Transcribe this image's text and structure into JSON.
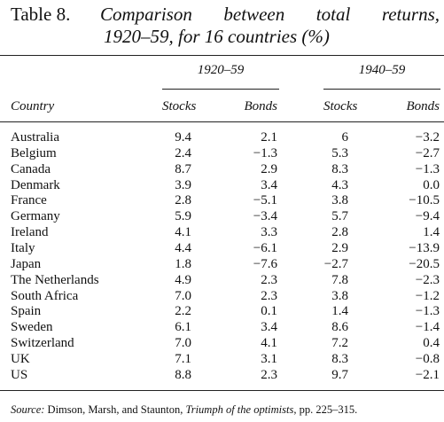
{
  "title": {
    "label": "Table 8.",
    "lines": [
      "Comparison between total returns,",
      "1920–59, for 16 countries (%)"
    ]
  },
  "table": {
    "groups": [
      "1920–59",
      "1940–59"
    ],
    "columns": [
      "Country",
      "Stocks",
      "Bonds",
      "Stocks",
      "Bonds"
    ],
    "rows": [
      [
        "Australia",
        "9.4",
        "2.1",
        "6",
        "−3.2"
      ],
      [
        "Belgium",
        "2.4",
        "−1.3",
        "5.3",
        "−2.7"
      ],
      [
        "Canada",
        "8.7",
        "2.9",
        "8.3",
        "−1.3"
      ],
      [
        "Denmark",
        "3.9",
        "3.4",
        "4.3",
        "0.0"
      ],
      [
        "France",
        "2.8",
        "−5.1",
        "3.8",
        "−10.5"
      ],
      [
        "Germany",
        "5.9",
        "−3.4",
        "5.7",
        "−9.4"
      ],
      [
        "Ireland",
        "4.1",
        "3.3",
        "2.8",
        "1.4"
      ],
      [
        "Italy",
        "4.4",
        "−6.1",
        "2.9",
        "−13.9"
      ],
      [
        "Japan",
        "1.8",
        "−7.6",
        "−2.7",
        "−20.5"
      ],
      [
        "The Netherlands",
        "4.9",
        "2.3",
        "7.8",
        "−2.3"
      ],
      [
        "South Africa",
        "7.0",
        "2.3",
        "3.8",
        "−1.2"
      ],
      [
        "Spain",
        "2.2",
        "0.1",
        "1.4",
        "−1.3"
      ],
      [
        "Sweden",
        "6.1",
        "3.4",
        "8.6",
        "−1.4"
      ],
      [
        "Switzerland",
        "7.0",
        "4.1",
        "7.2",
        "0.4"
      ],
      [
        "UK",
        "7.1",
        "3.1",
        "8.3",
        "−0.8"
      ],
      [
        "US",
        "8.8",
        "2.3",
        "9.7",
        "−2.1"
      ]
    ]
  },
  "source": {
    "label": "Source:",
    "authors": "Dimson, Marsh, and Staunton,",
    "work": "Triumph of the optimists",
    "pages": ", pp. 225–315."
  }
}
